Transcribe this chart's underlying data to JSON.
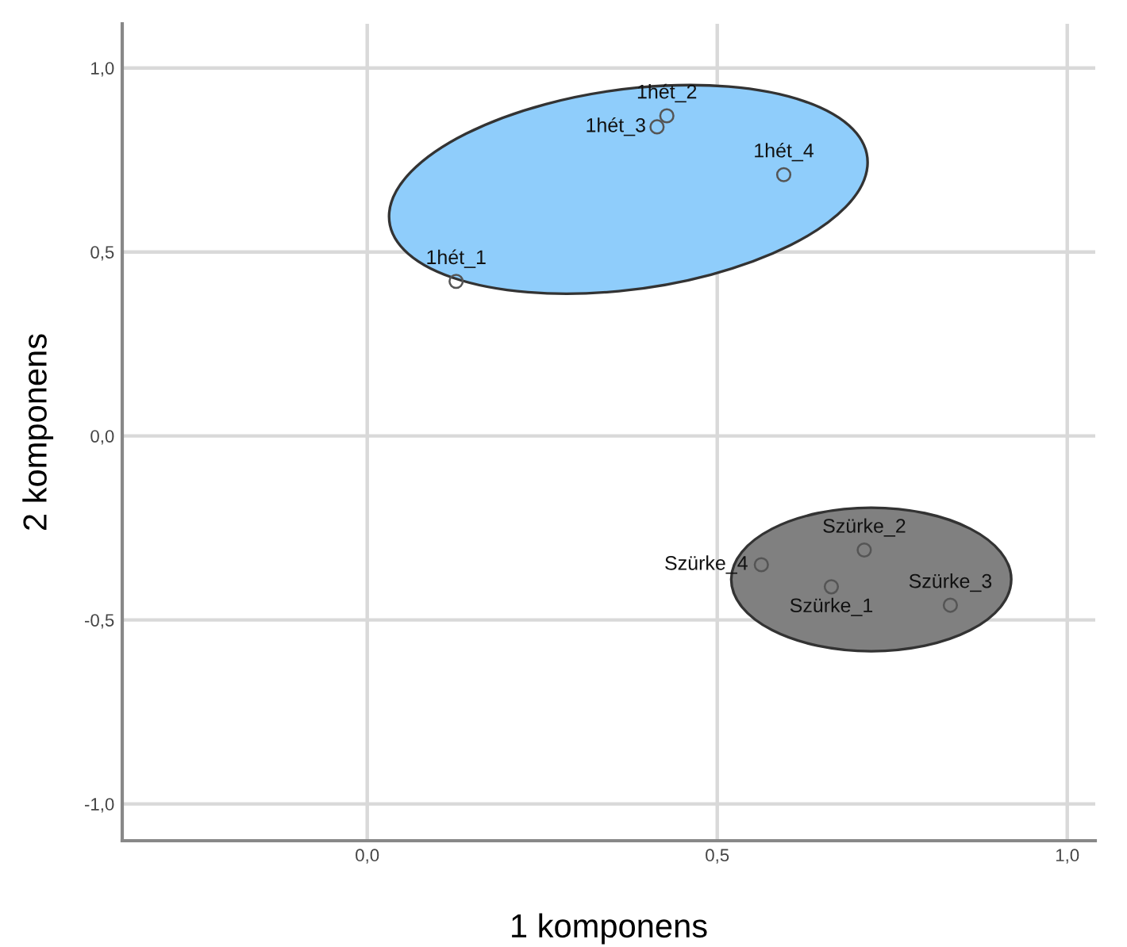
{
  "chart_data": {
    "type": "scatter",
    "xlabel": "1 komponens",
    "ylabel": "2 komponens",
    "xlim": [
      -0.35,
      1.04
    ],
    "ylim": [
      -1.1,
      1.12
    ],
    "xticks": [
      {
        "value": 0,
        "label": "0,0"
      },
      {
        "value": 0.5,
        "label": "0,5"
      },
      {
        "value": 1,
        "label": "1,0"
      }
    ],
    "yticks": [
      {
        "value": -1,
        "label": "-1,0"
      },
      {
        "value": -0.5,
        "label": "-0,5"
      },
      {
        "value": 0,
        "label": "0,0"
      },
      {
        "value": 0.5,
        "label": "0,5"
      },
      {
        "value": 1,
        "label": "1,0"
      }
    ],
    "grid": true,
    "legend": false,
    "marker": "circle",
    "series": [
      {
        "color": "#555555",
        "x": [
          0.127,
          0.428,
          0.414,
          0.595
        ],
        "values": [
          0.42,
          0.87,
          0.84,
          0.71
        ]
      },
      {
        "color": "#555555",
        "x": [
          0.663,
          0.71,
          0.833,
          0.563
        ],
        "values": [
          -0.41,
          -0.31,
          -0.46,
          -0.35
        ]
      }
    ],
    "annotations": [
      {
        "text": "1hét_1",
        "x": 0.127,
        "y": 0.42
      },
      {
        "text": "1hét_2",
        "x": 0.428,
        "y": 0.87
      },
      {
        "text": "1hét_3",
        "x": 0.414,
        "y": 0.84
      },
      {
        "text": "1hét_4",
        "x": 0.595,
        "y": 0.71
      },
      {
        "text": "Szürke_1",
        "x": 0.663,
        "y": -0.41
      },
      {
        "text": "Szürke_2",
        "x": 0.71,
        "y": -0.31
      },
      {
        "text": "Szürke_3",
        "x": 0.833,
        "y": -0.46
      },
      {
        "text": "Szürke_4",
        "x": 0.563,
        "y": -0.35
      }
    ]
  }
}
